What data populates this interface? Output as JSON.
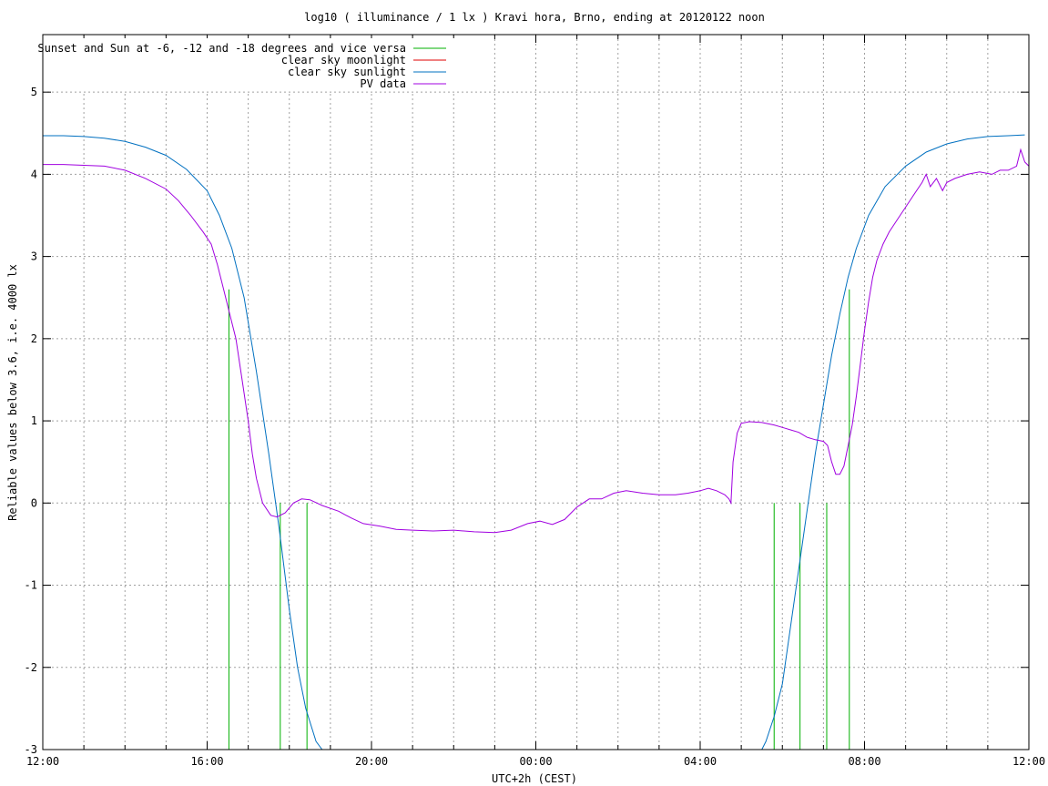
{
  "chart_data": {
    "type": "line",
    "title": "log10 ( illuminance / 1 lx ) Kravi hora, Brno, ending at 20120122 noon",
    "xlabel": "UTC+2h (CEST)",
    "ylabel": "Reliable values below 3.6, i.e. 4000 lx",
    "x_unit": "hours since 12:00",
    "xlim": [
      0,
      24
    ],
    "ylim": [
      -3,
      5.7
    ],
    "grid": true,
    "legend_position": "top-left",
    "x_tick_values": [
      0,
      4,
      8,
      12,
      16,
      20,
      24
    ],
    "x_tick_labels": [
      "12:00",
      "16:00",
      "20:00",
      "00:00",
      "04:00",
      "08:00",
      "12:00"
    ],
    "x_minor_ticks": [
      1,
      2,
      3,
      5,
      6,
      7,
      9,
      10,
      11,
      13,
      14,
      15,
      17,
      18,
      19,
      21,
      22,
      23
    ],
    "y_ticks": [
      -3,
      -2,
      -1,
      0,
      1,
      2,
      3,
      4,
      5
    ],
    "y_tick_labels": [
      "-3",
      "-2",
      "-1",
      "0",
      "1",
      "2",
      "3",
      "4",
      "5"
    ],
    "series": [
      {
        "name": "Sunset and Sun at -6, -12 and -18 degrees and vice versa",
        "color": "#00b000",
        "kind": "vlines",
        "x": [
          4.53,
          5.78,
          6.43,
          17.8,
          18.43,
          19.08,
          19.63
        ],
        "y_top": [
          2.6,
          0.0,
          0.0,
          0.0,
          0.0,
          0.0,
          2.6
        ]
      },
      {
        "name": "clear sky moonlight",
        "color": "#e00000",
        "kind": "line",
        "points": []
      },
      {
        "name": "clear sky sunlight",
        "color": "#0070c0",
        "kind": "line",
        "points": [
          [
            0,
            4.47
          ],
          [
            0.5,
            4.47
          ],
          [
            1,
            4.46
          ],
          [
            1.5,
            4.44
          ],
          [
            2,
            4.4
          ],
          [
            2.5,
            4.33
          ],
          [
            3,
            4.23
          ],
          [
            3.5,
            4.06
          ],
          [
            4,
            3.8
          ],
          [
            4.3,
            3.5
          ],
          [
            4.6,
            3.1
          ],
          [
            4.9,
            2.5
          ],
          [
            5.2,
            1.6
          ],
          [
            5.5,
            0.6
          ],
          [
            5.75,
            -0.3
          ],
          [
            6,
            -1.3
          ],
          [
            6.2,
            -2.0
          ],
          [
            6.4,
            -2.5
          ],
          [
            6.65,
            -2.9
          ],
          [
            6.8,
            -3.0
          ],
          [
            17.5,
            -3.0
          ],
          [
            17.6,
            -2.9
          ],
          [
            17.8,
            -2.6
          ],
          [
            18,
            -2.2
          ],
          [
            18.2,
            -1.5
          ],
          [
            18.4,
            -0.8
          ],
          [
            18.6,
            -0.1
          ],
          [
            18.8,
            0.6
          ],
          [
            19,
            1.2
          ],
          [
            19.2,
            1.8
          ],
          [
            19.4,
            2.3
          ],
          [
            19.6,
            2.75
          ],
          [
            19.8,
            3.1
          ],
          [
            20.1,
            3.5
          ],
          [
            20.5,
            3.85
          ],
          [
            21,
            4.1
          ],
          [
            21.5,
            4.27
          ],
          [
            22,
            4.37
          ],
          [
            22.5,
            4.43
          ],
          [
            23,
            4.46
          ],
          [
            23.5,
            4.47
          ],
          [
            23.9,
            4.48
          ]
        ]
      },
      {
        "name": "PV data",
        "color": "#a000e0",
        "kind": "line",
        "points": [
          [
            0,
            4.12
          ],
          [
            0.5,
            4.12
          ],
          [
            1,
            4.11
          ],
          [
            1.5,
            4.1
          ],
          [
            2,
            4.05
          ],
          [
            2.5,
            3.95
          ],
          [
            3,
            3.82
          ],
          [
            3.3,
            3.68
          ],
          [
            3.6,
            3.5
          ],
          [
            3.9,
            3.3
          ],
          [
            4.1,
            3.15
          ],
          [
            4.25,
            2.9
          ],
          [
            4.4,
            2.6
          ],
          [
            4.55,
            2.3
          ],
          [
            4.7,
            2.0
          ],
          [
            4.85,
            1.5
          ],
          [
            5,
            1.0
          ],
          [
            5.1,
            0.6
          ],
          [
            5.2,
            0.3
          ],
          [
            5.35,
            0.0
          ],
          [
            5.55,
            -0.15
          ],
          [
            5.7,
            -0.17
          ],
          [
            5.9,
            -0.12
          ],
          [
            6.1,
            0.0
          ],
          [
            6.3,
            0.05
          ],
          [
            6.5,
            0.04
          ],
          [
            6.8,
            -0.03
          ],
          [
            7.2,
            -0.1
          ],
          [
            7.5,
            -0.18
          ],
          [
            7.8,
            -0.25
          ],
          [
            8.2,
            -0.28
          ],
          [
            8.6,
            -0.32
          ],
          [
            9,
            -0.33
          ],
          [
            9.5,
            -0.34
          ],
          [
            10,
            -0.33
          ],
          [
            10.5,
            -0.35
          ],
          [
            11,
            -0.36
          ],
          [
            11.4,
            -0.33
          ],
          [
            11.8,
            -0.25
          ],
          [
            12.1,
            -0.22
          ],
          [
            12.4,
            -0.26
          ],
          [
            12.7,
            -0.2
          ],
          [
            13,
            -0.05
          ],
          [
            13.3,
            0.05
          ],
          [
            13.6,
            0.05
          ],
          [
            13.9,
            0.12
          ],
          [
            14.2,
            0.15
          ],
          [
            14.6,
            0.12
          ],
          [
            15,
            0.1
          ],
          [
            15.4,
            0.1
          ],
          [
            15.7,
            0.12
          ],
          [
            16,
            0.15
          ],
          [
            16.2,
            0.18
          ],
          [
            16.4,
            0.15
          ],
          [
            16.6,
            0.1
          ],
          [
            16.7,
            0.05
          ],
          [
            16.75,
            0.0
          ],
          [
            16.8,
            0.5
          ],
          [
            16.9,
            0.85
          ],
          [
            17,
            0.97
          ],
          [
            17.2,
            0.99
          ],
          [
            17.5,
            0.98
          ],
          [
            17.8,
            0.95
          ],
          [
            18,
            0.92
          ],
          [
            18.2,
            0.89
          ],
          [
            18.4,
            0.86
          ],
          [
            18.6,
            0.8
          ],
          [
            18.8,
            0.77
          ],
          [
            19,
            0.75
          ],
          [
            19.1,
            0.7
          ],
          [
            19.2,
            0.5
          ],
          [
            19.3,
            0.35
          ],
          [
            19.4,
            0.35
          ],
          [
            19.5,
            0.45
          ],
          [
            19.6,
            0.7
          ],
          [
            19.7,
            0.95
          ],
          [
            19.8,
            1.3
          ],
          [
            19.9,
            1.7
          ],
          [
            20,
            2.1
          ],
          [
            20.1,
            2.45
          ],
          [
            20.2,
            2.75
          ],
          [
            20.3,
            2.95
          ],
          [
            20.45,
            3.15
          ],
          [
            20.6,
            3.3
          ],
          [
            20.8,
            3.45
          ],
          [
            21,
            3.6
          ],
          [
            21.2,
            3.75
          ],
          [
            21.4,
            3.9
          ],
          [
            21.5,
            4.0
          ],
          [
            21.6,
            3.85
          ],
          [
            21.75,
            3.95
          ],
          [
            21.9,
            3.8
          ],
          [
            22,
            3.9
          ],
          [
            22.2,
            3.95
          ],
          [
            22.5,
            4.0
          ],
          [
            22.8,
            4.03
          ],
          [
            23.1,
            4.0
          ],
          [
            23.3,
            4.05
          ],
          [
            23.5,
            4.05
          ],
          [
            23.7,
            4.1
          ],
          [
            23.8,
            4.3
          ],
          [
            23.9,
            4.15
          ],
          [
            24,
            4.1
          ]
        ]
      }
    ]
  }
}
